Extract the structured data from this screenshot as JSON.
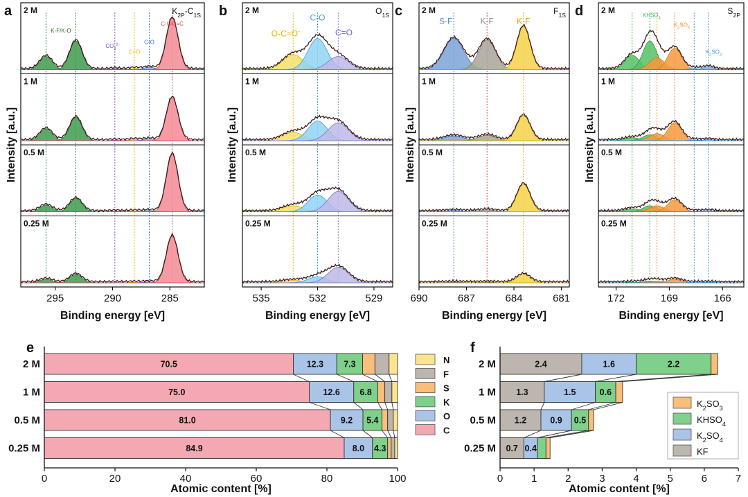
{
  "chart_data": [
    {
      "panel": "a",
      "type": "line",
      "element_label": "K2P-C1S",
      "xlabel": "Binding energy [eV]",
      "ylabel": "Intensity [a.u.]",
      "xlim": [
        298,
        282
      ],
      "ticks": [
        295,
        290,
        285
      ],
      "reference_lines": [
        {
          "x": 295.8,
          "color": "#2e8b3a"
        },
        {
          "x": 293.2,
          "color": "#2e8b3a"
        },
        {
          "x": 289.8,
          "color": "#8a4fd6"
        },
        {
          "x": 288.1,
          "color": "#e8b400"
        },
        {
          "x": 286.8,
          "color": "#3f6fd8"
        },
        {
          "x": 284.8,
          "color": "#e8474c"
        }
      ],
      "peak_labels": [
        {
          "text": "K-F/K-O",
          "x": 294.5,
          "color": "#2e6b2e",
          "pos": 0.35
        },
        {
          "text": "CO3 2-",
          "x": 290.0,
          "color": "#8a4fd6",
          "pos": 0.62
        },
        {
          "text": "C=O",
          "x": 288.1,
          "color": "#e8b400",
          "pos": 0.72
        },
        {
          "text": "C-O",
          "x": 286.8,
          "color": "#3f6fd8",
          "pos": 0.55
        },
        {
          "text": "C-C/C=C",
          "x": 284.8,
          "color": "#e8474c",
          "pos": 0.23
        }
      ],
      "rows": [
        {
          "label": "2 M",
          "peaks": [
            {
              "c": 295.8,
              "a": 0.22,
              "w": 0.9,
              "col": "green"
            },
            {
              "c": 293.2,
              "a": 0.48,
              "w": 0.9,
              "col": "green"
            },
            {
              "c": 289.8,
              "a": 0.015,
              "w": 0.7,
              "col": "purple"
            },
            {
              "c": 288.1,
              "a": 0.02,
              "w": 0.7,
              "col": "yellow"
            },
            {
              "c": 286.8,
              "a": 0.04,
              "w": 0.8,
              "col": "blue"
            },
            {
              "c": 284.8,
              "a": 0.86,
              "w": 0.85,
              "col": "red"
            }
          ]
        },
        {
          "label": "1 M",
          "peaks": [
            {
              "c": 295.8,
              "a": 0.2,
              "w": 0.9,
              "col": "green"
            },
            {
              "c": 293.2,
              "a": 0.39,
              "w": 0.9,
              "col": "green"
            },
            {
              "c": 289.8,
              "a": 0.01,
              "w": 0.7,
              "col": "purple"
            },
            {
              "c": 288.1,
              "a": 0.02,
              "w": 0.7,
              "col": "yellow"
            },
            {
              "c": 286.8,
              "a": 0.03,
              "w": 0.8,
              "col": "blue"
            },
            {
              "c": 284.8,
              "a": 0.72,
              "w": 0.85,
              "col": "red"
            }
          ]
        },
        {
          "label": "0.5 M",
          "peaks": [
            {
              "c": 295.8,
              "a": 0.11,
              "w": 0.9,
              "col": "green"
            },
            {
              "c": 293.2,
              "a": 0.22,
              "w": 0.9,
              "col": "green"
            },
            {
              "c": 289.8,
              "a": 0.01,
              "w": 0.7,
              "col": "purple"
            },
            {
              "c": 288.1,
              "a": 0.015,
              "w": 0.7,
              "col": "yellow"
            },
            {
              "c": 286.8,
              "a": 0.02,
              "w": 0.8,
              "col": "blue"
            },
            {
              "c": 284.8,
              "a": 0.96,
              "w": 0.85,
              "col": "red"
            }
          ]
        },
        {
          "label": "0.25 M",
          "peaks": [
            {
              "c": 295.8,
              "a": 0.06,
              "w": 0.9,
              "col": "green"
            },
            {
              "c": 293.2,
              "a": 0.14,
              "w": 0.9,
              "col": "green"
            },
            {
              "c": 289.8,
              "a": 0.005,
              "w": 0.7,
              "col": "purple"
            },
            {
              "c": 288.1,
              "a": 0.01,
              "w": 0.7,
              "col": "yellow"
            },
            {
              "c": 286.8,
              "a": 0.015,
              "w": 0.8,
              "col": "blue"
            },
            {
              "c": 284.8,
              "a": 0.78,
              "w": 0.85,
              "col": "red"
            }
          ]
        }
      ]
    },
    {
      "panel": "b",
      "type": "line",
      "element_label": "O1S",
      "xlabel": "Binding energy [eV]",
      "ylabel": "Intensity [a.u.]",
      "xlim": [
        536,
        528
      ],
      "ticks": [
        535,
        532,
        529
      ],
      "reference_lines": [
        {
          "x": 533.3,
          "color": "#e8b400"
        },
        {
          "x": 532.0,
          "color": "#3f9fd8"
        },
        {
          "x": 530.9,
          "color": "#8a7fd6"
        }
      ],
      "peak_labels": [
        {
          "text": "O-C=O-",
          "x": 533.7,
          "color": "#e8b400",
          "pos": 0.42
        },
        {
          "text": "C-O",
          "x": 532.0,
          "color": "#3f9fd8",
          "pos": 0.14
        },
        {
          "text": "C=O",
          "x": 530.6,
          "color": "#6a5fd0",
          "pos": 0.4
        }
      ],
      "rows": [
        {
          "label": "2 M",
          "peaks": [
            {
              "c": 533.3,
              "a": 0.25,
              "w": 0.9,
              "col": "yellow"
            },
            {
              "c": 532.0,
              "a": 0.52,
              "w": 0.85,
              "col": "lightblue"
            },
            {
              "c": 530.9,
              "a": 0.22,
              "w": 0.9,
              "col": "lavender"
            }
          ]
        },
        {
          "label": "1 M",
          "peaks": [
            {
              "c": 533.3,
              "a": 0.14,
              "w": 0.9,
              "col": "yellow"
            },
            {
              "c": 532.0,
              "a": 0.33,
              "w": 0.85,
              "col": "lightblue"
            },
            {
              "c": 530.9,
              "a": 0.3,
              "w": 0.9,
              "col": "lavender"
            }
          ]
        },
        {
          "label": "0.5 M",
          "peaks": [
            {
              "c": 533.3,
              "a": 0.1,
              "w": 0.9,
              "col": "yellow"
            },
            {
              "c": 532.0,
              "a": 0.28,
              "w": 0.85,
              "col": "lightblue"
            },
            {
              "c": 530.9,
              "a": 0.34,
              "w": 0.9,
              "col": "lavender"
            }
          ]
        },
        {
          "label": "0.25 M",
          "peaks": [
            {
              "c": 533.3,
              "a": 0.04,
              "w": 0.9,
              "col": "yellow"
            },
            {
              "c": 532.0,
              "a": 0.1,
              "w": 0.85,
              "col": "lightblue"
            },
            {
              "c": 530.9,
              "a": 0.26,
              "w": 0.9,
              "col": "lavender"
            }
          ]
        }
      ]
    },
    {
      "panel": "c",
      "type": "line",
      "element_label": "F1S",
      "xlabel": "Binding energy [eV]",
      "ylabel": "Intensity [a.u.]",
      "xlim": [
        690,
        680.5
      ],
      "ticks": [
        690,
        687,
        684,
        681
      ],
      "reference_lines": [
        {
          "x": 687.8,
          "color": "#4f86d8"
        },
        {
          "x": 685.7,
          "color": "#e8474c"
        },
        {
          "x": 683.4,
          "color": "#e8b400"
        }
      ],
      "peak_labels": [
        {
          "text": "S-F",
          "x": 688.3,
          "color": "#4f86d8",
          "pos": 0.2
        },
        {
          "text": "K-F",
          "x": 685.7,
          "color": "#8a8a8a",
          "pos": 0.2
        },
        {
          "text": "K-F",
          "x": 683.4,
          "color": "#e8a000",
          "pos": 0.2
        }
      ],
      "rows": [
        {
          "label": "2 M",
          "peaks": [
            {
              "c": 687.8,
              "a": 0.52,
              "w": 1.05,
              "col": "steelblue"
            },
            {
              "c": 685.7,
              "a": 0.5,
              "w": 0.9,
              "col": "gray"
            },
            {
              "c": 683.4,
              "a": 0.72,
              "w": 0.7,
              "col": "gold"
            }
          ]
        },
        {
          "label": "1 M",
          "peaks": [
            {
              "c": 687.8,
              "a": 0.08,
              "w": 1.05,
              "col": "steelblue"
            },
            {
              "c": 685.7,
              "a": 0.09,
              "w": 0.9,
              "col": "gray"
            },
            {
              "c": 683.4,
              "a": 0.42,
              "w": 0.7,
              "col": "gold"
            }
          ]
        },
        {
          "label": "0.5 M",
          "peaks": [
            {
              "c": 687.8,
              "a": 0.02,
              "w": 1.05,
              "col": "steelblue"
            },
            {
              "c": 685.7,
              "a": 0.03,
              "w": 0.9,
              "col": "gray"
            },
            {
              "c": 683.4,
              "a": 0.46,
              "w": 0.7,
              "col": "gold"
            }
          ]
        },
        {
          "label": "0.25 M",
          "peaks": [
            {
              "c": 687.8,
              "a": 0.01,
              "w": 1.05,
              "col": "steelblue"
            },
            {
              "c": 685.7,
              "a": 0.01,
              "w": 0.9,
              "col": "gray"
            },
            {
              "c": 683.4,
              "a": 0.14,
              "w": 0.7,
              "col": "gold"
            }
          ]
        }
      ]
    },
    {
      "panel": "d",
      "type": "line",
      "element_label": "S2P",
      "xlabel": "Binding energy [eV]",
      "ylabel": "Intensity [a.u.]",
      "xlim": [
        173,
        164.8
      ],
      "ticks": [
        172,
        169,
        166
      ],
      "reference_lines": [
        {
          "x": 171.1,
          "color": "#2fb84a"
        },
        {
          "x": 170.1,
          "color": "#2fb84a"
        },
        {
          "x": 169.7,
          "color": "#f08c2a"
        },
        {
          "x": 168.7,
          "color": "#f08c2a"
        },
        {
          "x": 167.6,
          "color": "#3f9fd8"
        },
        {
          "x": 166.8,
          "color": "#3f9fd8"
        }
      ],
      "peak_labels": [
        {
          "text": "KHSO4",
          "x": 170.0,
          "color": "#2fb84a",
          "pos": 0.08
        },
        {
          "text": "K2SO4",
          "x": 168.3,
          "color": "#f08c2a",
          "pos": 0.25
        },
        {
          "text": "K2SO3",
          "x": 166.5,
          "color": "#3f9fd8",
          "pos": 0.72
        }
      ],
      "rows": [
        {
          "label": "2 M",
          "peaks": [
            {
              "c": 171.1,
              "a": 0.24,
              "w": 0.7,
              "col": "green2"
            },
            {
              "c": 170.1,
              "a": 0.48,
              "w": 0.65,
              "col": "green2"
            },
            {
              "c": 169.7,
              "a": 0.2,
              "w": 0.7,
              "col": "orange"
            },
            {
              "c": 168.7,
              "a": 0.36,
              "w": 0.65,
              "col": "orange"
            },
            {
              "c": 167.6,
              "a": 0.02,
              "w": 0.5,
              "col": "skyblue"
            },
            {
              "c": 166.8,
              "a": 0.05,
              "w": 0.5,
              "col": "skyblue"
            }
          ]
        },
        {
          "label": "1 M",
          "peaks": [
            {
              "c": 171.1,
              "a": 0.05,
              "w": 0.7,
              "col": "green2"
            },
            {
              "c": 170.1,
              "a": 0.1,
              "w": 0.65,
              "col": "green2"
            },
            {
              "c": 169.7,
              "a": 0.12,
              "w": 0.7,
              "col": "orange"
            },
            {
              "c": 168.7,
              "a": 0.3,
              "w": 0.65,
              "col": "orange"
            },
            {
              "c": 167.6,
              "a": 0.01,
              "w": 0.5,
              "col": "skyblue"
            },
            {
              "c": 166.8,
              "a": 0.02,
              "w": 0.5,
              "col": "skyblue"
            }
          ]
        },
        {
          "label": "0.5 M",
          "peaks": [
            {
              "c": 171.1,
              "a": 0.05,
              "w": 0.7,
              "col": "green2"
            },
            {
              "c": 170.1,
              "a": 0.1,
              "w": 0.65,
              "col": "green2"
            },
            {
              "c": 169.7,
              "a": 0.1,
              "w": 0.7,
              "col": "orange"
            },
            {
              "c": 168.7,
              "a": 0.2,
              "w": 0.65,
              "col": "orange"
            },
            {
              "c": 167.6,
              "a": 0.01,
              "w": 0.5,
              "col": "skyblue"
            },
            {
              "c": 166.8,
              "a": 0.02,
              "w": 0.5,
              "col": "skyblue"
            }
          ]
        },
        {
          "label": "0.25 M",
          "peaks": [
            {
              "c": 171.1,
              "a": 0.01,
              "w": 0.7,
              "col": "green2"
            },
            {
              "c": 170.1,
              "a": 0.03,
              "w": 0.65,
              "col": "green2"
            },
            {
              "c": 169.7,
              "a": 0.03,
              "w": 0.7,
              "col": "orange"
            },
            {
              "c": 168.7,
              "a": 0.06,
              "w": 0.65,
              "col": "orange"
            },
            {
              "c": 167.6,
              "a": 0.005,
              "w": 0.5,
              "col": "skyblue"
            },
            {
              "c": 166.8,
              "a": 0.01,
              "w": 0.5,
              "col": "skyblue"
            }
          ]
        }
      ]
    },
    {
      "panel": "e",
      "type": "bar",
      "orientation": "horizontal",
      "stacked": true,
      "categories": [
        "2 M",
        "1 M",
        "0.5 M",
        "0.25 M"
      ],
      "series": [
        {
          "name": "C",
          "values": [
            70.5,
            75.0,
            81.0,
            84.9
          ],
          "color": "#f4a8b2",
          "labels": [
            "70.5",
            "75.0",
            "81.0",
            "84.9"
          ]
        },
        {
          "name": "O",
          "values": [
            12.3,
            12.6,
            9.2,
            8.0
          ],
          "color": "#aac4e8",
          "labels": [
            "12.3",
            "12.6",
            "9.2",
            "8.0"
          ]
        },
        {
          "name": "K",
          "values": [
            7.3,
            6.8,
            5.4,
            4.3
          ],
          "color": "#7ed08a",
          "labels": [
            "7.3",
            "6.8",
            "5.4",
            "4.3"
          ]
        },
        {
          "name": "S",
          "values": [
            3.5,
            2.0,
            1.6,
            1.0
          ],
          "color": "#f9be7a",
          "labels": [
            "",
            "",
            "",
            ""
          ]
        },
        {
          "name": "F",
          "values": [
            4.0,
            2.0,
            1.6,
            1.0
          ],
          "color": "#bdb6ae",
          "labels": [
            "",
            "",
            "",
            ""
          ]
        },
        {
          "name": "N",
          "values": [
            2.4,
            1.6,
            1.2,
            0.8
          ],
          "color": "#fbe48f",
          "labels": [
            "",
            "",
            "",
            ""
          ]
        }
      ],
      "legend_order": [
        "N",
        "F",
        "S",
        "K",
        "O",
        "C"
      ],
      "xlabel": "Atomic content [%]",
      "xlim": [
        0,
        100
      ],
      "ticks": [
        0,
        20,
        40,
        60,
        80,
        100
      ]
    },
    {
      "panel": "f",
      "type": "bar",
      "orientation": "horizontal",
      "stacked": true,
      "categories": [
        "2 M",
        "1 M",
        "0.5 M",
        "0.25 M"
      ],
      "series": [
        {
          "name": "KF",
          "values": [
            2.4,
            1.3,
            1.2,
            0.7
          ],
          "color": "#bdb6ae",
          "labels": [
            "2.4",
            "1.3",
            "1.2",
            "0.7"
          ]
        },
        {
          "name": "K2SO4",
          "values": [
            1.6,
            1.5,
            0.9,
            0.4
          ],
          "color": "#aac4e8",
          "labels": [
            "1.6",
            "1.5",
            "0.9",
            "0.4"
          ]
        },
        {
          "name": "KHSO4",
          "values": [
            2.2,
            0.6,
            0.5,
            0.25
          ],
          "color": "#7ed08a",
          "labels": [
            "2.2",
            "0.6",
            "0.5",
            ""
          ]
        },
        {
          "name": "K2SO3",
          "values": [
            0.2,
            0.2,
            0.15,
            0.12
          ],
          "color": "#f9be7a",
          "labels": [
            "",
            "",
            "",
            ""
          ]
        }
      ],
      "legend_order": [
        "K2SO3",
        "KHSO4",
        "K2SO4",
        "KF"
      ],
      "xlabel": "Atomic content [%]",
      "xlim": [
        0,
        7
      ],
      "ticks": [
        0,
        1,
        2,
        3,
        4,
        5,
        6,
        7
      ]
    }
  ],
  "panel_letters": [
    "a",
    "b",
    "c",
    "d",
    "e",
    "f"
  ]
}
